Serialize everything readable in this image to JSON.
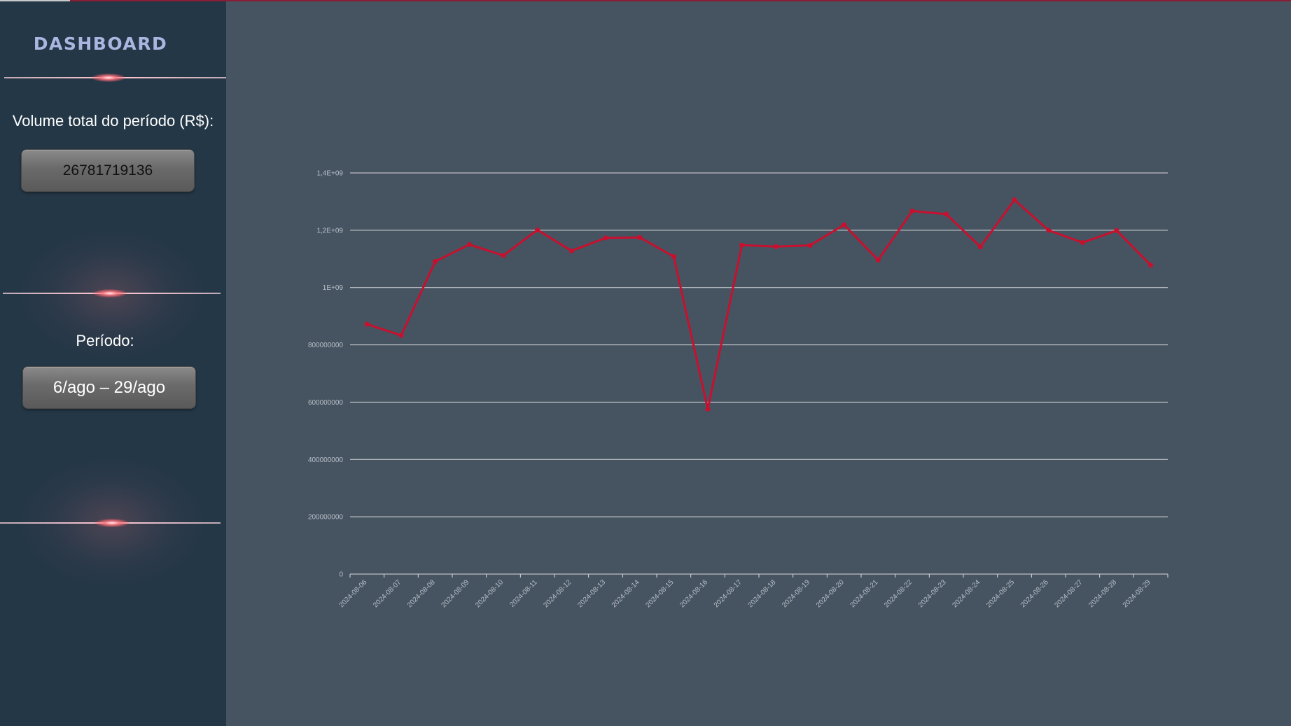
{
  "sidebar": {
    "title": "DASHBOARD",
    "volume_label": "Volume total do período (R$):",
    "volume_value": "26781719136",
    "period_label": "Período:",
    "period_value": "6/ago – 29/ago"
  },
  "colors": {
    "sidebar_bg": "#243746",
    "chart_bg": "#465462",
    "line": "#c8102e",
    "title": "#aab6e0"
  },
  "chart_data": {
    "type": "line",
    "title": "",
    "xlabel": "",
    "ylabel": "",
    "ylim": [
      0,
      1400000000
    ],
    "y_ticks": [
      0,
      200000000,
      400000000,
      600000000,
      800000000,
      1000000000,
      1200000000,
      1400000000
    ],
    "y_tick_labels": [
      "0",
      "200000000",
      "400000000",
      "600000000",
      "800000000",
      "1E+09",
      "1,2E+09",
      "1,4E+09"
    ],
    "grid": true,
    "legend": "none",
    "x": [
      "2024-08-06",
      "2024-08-07",
      "2024-08-08",
      "2024-08-09",
      "2024-08-10",
      "2024-08-11",
      "2024-08-12",
      "2024-08-13",
      "2024-08-14",
      "2024-08-15",
      "2024-08-16",
      "2024-08-17",
      "2024-08-18",
      "2024-08-19",
      "2024-08-20",
      "2024-08-21",
      "2024-08-22",
      "2024-08-23",
      "2024-08-24",
      "2024-08-25",
      "2024-08-26",
      "2024-08-27",
      "2024-08-28",
      "2024-08-29"
    ],
    "series": [
      {
        "values": [
          872000000,
          833000000,
          1091000000,
          1150000000,
          1112000000,
          1201000000,
          1128000000,
          1173000000,
          1175000000,
          1108000000,
          576000000,
          1148000000,
          1143000000,
          1147000000,
          1219000000,
          1096000000,
          1267000000,
          1256000000,
          1142000000,
          1306000000,
          1200000000,
          1157000000,
          1199000000,
          1078000000
        ]
      }
    ]
  }
}
